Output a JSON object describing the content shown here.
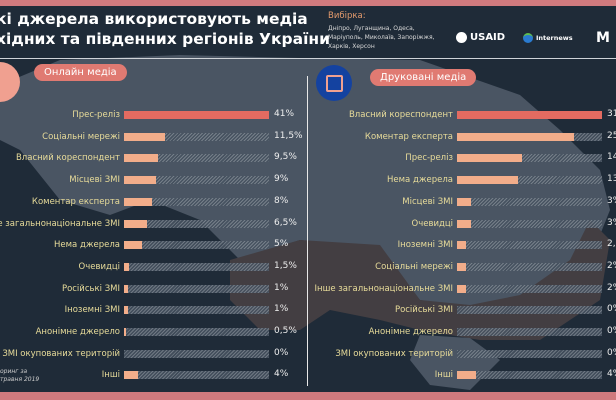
{
  "header": {
    "title_line1": "кі джерела використовують медіа",
    "title_line2": "хідних та південних регіонів України",
    "sample_heading": "Вибірка:",
    "sample_text": "Дніпро, Луганщина, Одеса, Маріуполь, Миколаїв, Запоріжжя, Харків, Херсон"
  },
  "logos": {
    "usaid": "USAID",
    "internews": "Internews"
  },
  "footer": {
    "line1": "оринг за",
    "line2": "травня 2019"
  },
  "colors": {
    "background": "#1f2b38",
    "accent": "#e36b61",
    "bar": "#f2ad8a",
    "label": "#e8dc9a"
  },
  "chart_data": [
    {
      "type": "bar",
      "orientation": "horizontal",
      "title": "Онлайн медіа",
      "icon": "monitor-icon",
      "xlim": [
        0,
        41
      ],
      "categories": [
        "Прес-реліз",
        "Соціальні мережі",
        "Власний кореспондент",
        "Місцеві ЗМІ",
        "Коментар експерта",
        "Інше загальнонаціональне ЗМІ",
        "Нема джерела",
        "Очевидці",
        "Російські ЗМІ",
        "Іноземні ЗМІ",
        "Анонімне джерело",
        "ЗМІ окупованих територій",
        "Інші"
      ],
      "values": [
        41,
        11.5,
        9.5,
        9,
        8,
        6.5,
        5,
        1.5,
        1,
        1,
        0.5,
        0,
        4
      ],
      "labels": [
        "41%",
        "11,5%",
        "9,5%",
        "9%",
        "8%",
        "6,5%",
        "5%",
        "1,5%",
        "1%",
        "1%",
        "0,5%",
        "0%",
        "4%"
      ]
    },
    {
      "type": "bar",
      "orientation": "horizontal",
      "title": "Друковані медіа",
      "icon": "newspaper-icon",
      "xlim": [
        0,
        31
      ],
      "categories": [
        "Власний кореспондент",
        "Коментар експерта",
        "Прес-реліз",
        "Нема джерела",
        "Місцеві ЗМІ",
        "Очевидці",
        "Іноземні ЗМІ",
        "Соціальні мережі",
        "Інше загальнонаціональне ЗМІ",
        "Російські ЗМІ",
        "Анонімне джерело",
        "ЗМІ окупованих територій",
        "Інші"
      ],
      "values": [
        31,
        25,
        14,
        13,
        3,
        3,
        2,
        2,
        2,
        0,
        0,
        0,
        4
      ],
      "labels": [
        "31",
        "25",
        "14",
        "13",
        "3%",
        "3%",
        "2,",
        "2%",
        "2%",
        "0%",
        "0%",
        "0%",
        "4%"
      ]
    }
  ]
}
